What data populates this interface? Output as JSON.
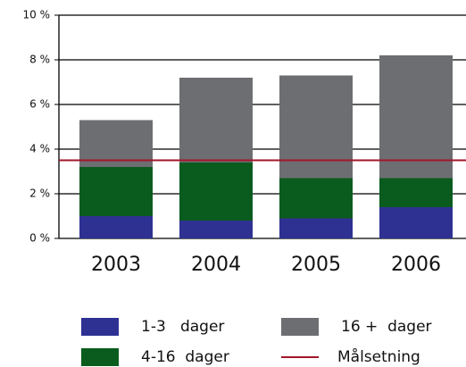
{
  "chart_data": {
    "type": "stacked_bar",
    "categories": [
      "2003",
      "2004",
      "2005",
      "2006"
    ],
    "series": [
      {
        "name": "1-3   dager",
        "color": "#2e3192",
        "values": [
          1.0,
          0.8,
          0.9,
          1.4
        ]
      },
      {
        "name": "4-16  dager",
        "color": "#0a5c1e",
        "values": [
          2.2,
          2.6,
          1.8,
          1.3
        ]
      },
      {
        "name": "16 +  dager",
        "color": "#6d6e71",
        "values": [
          2.1,
          3.8,
          4.6,
          5.5
        ]
      }
    ],
    "target": {
      "name": "Målsetning",
      "value": 3.5,
      "color": "#a3162b"
    },
    "ylim": [
      0,
      10
    ],
    "yticks": [
      {
        "value": 0,
        "label": "0 %"
      },
      {
        "value": 2,
        "label": "2 %"
      },
      {
        "value": 4,
        "label": "4 %"
      },
      {
        "value": 6,
        "label": "6 %"
      },
      {
        "value": 8,
        "label": "8 %"
      },
      {
        "value": 10,
        "label": "10 %"
      }
    ],
    "grid": true
  }
}
